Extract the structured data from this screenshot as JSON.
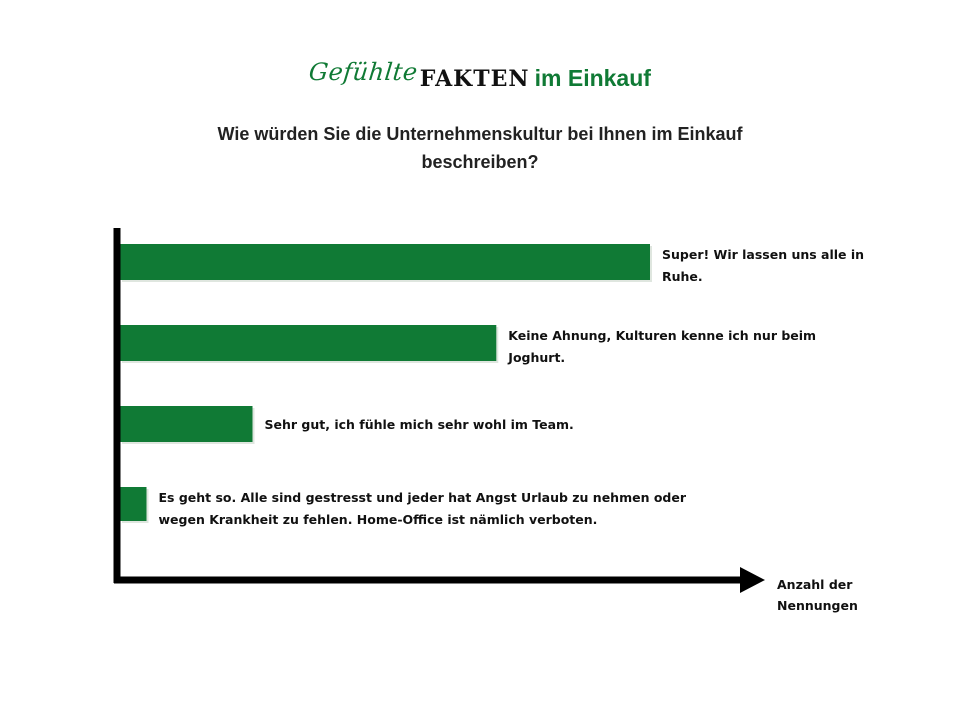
{
  "header": {
    "brand_word1": "Gefühlte",
    "brand_word2": "FAKTEN",
    "brand_word3": "im Einkauf",
    "question": "Wie würden Sie die Unternehmenskultur bei Ihnen im Einkauf beschreiben?"
  },
  "colors": {
    "bar": "#107a35",
    "axis": "#000000",
    "brand": "#107a35"
  },
  "chart_data": {
    "type": "bar",
    "orientation": "horizontal",
    "title": "Wie würden Sie die Unternehmenskultur bei Ihnen im Einkauf beschreiben?",
    "xlabel": "Anzahl der Nennungen",
    "ylabel": "",
    "categories": [
      "Super! Wir lassen uns alle in Ruhe.",
      "Keine Ahnung, Kulturen kenne ich nur beim Joghurt.",
      "Sehr gut, ich fühle mich sehr wohl im Team.",
      "Es geht so. Alle sind gestresst und jeder hat Angst Urlaub zu nehmen oder wegen Krankheit zu fehlen. Home-Office ist nämlich verboten."
    ],
    "label_lines": [
      [
        "Super! Wir lassen uns alle in",
        "Ruhe."
      ],
      [
        "Keine Ahnung, Kulturen kenne ich nur beim",
        "Joghurt."
      ],
      [
        "Sehr gut, ich fühle mich sehr wohl im Team."
      ],
      [
        "Es geht so. Alle sind gestresst und jeder hat Angst Urlaub zu nehmen oder",
        "wegen Krankheit zu fehlen. Home-Office ist nämlich verboten."
      ]
    ],
    "values": [
      100,
      71,
      25,
      5
    ],
    "value_unit": "relative length (no numeric scale shown)",
    "xlim": [
      0,
      100
    ],
    "axis_arrow": true,
    "grid": false,
    "legend": "none"
  }
}
